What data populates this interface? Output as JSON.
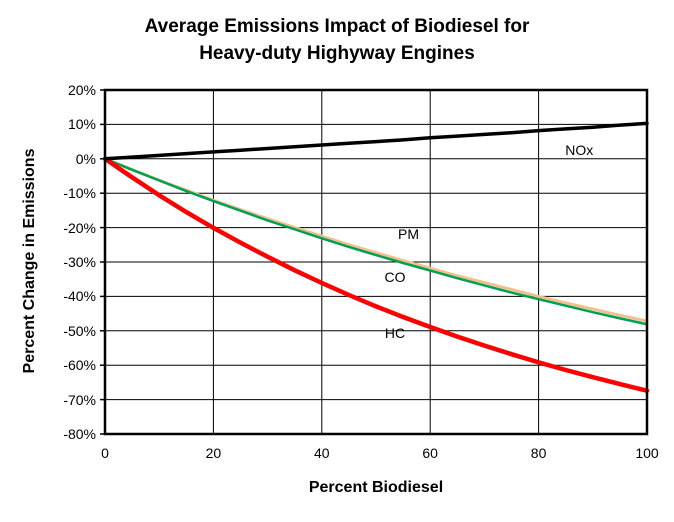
{
  "page": {
    "background": "#ffffff"
  },
  "title": {
    "line1": "Average Emissions Impact of Biodiesel for",
    "line2": "Heavy-duty Highyway Engines"
  },
  "chart_data": {
    "type": "line",
    "title": "Average Emissions Impact of Biodiesel for Heavy-duty Highyway Engines",
    "xlabel": "Percent Biodiesel",
    "ylabel": "Percent Change in Emissions",
    "xlim": [
      0,
      100
    ],
    "ylim": [
      -80,
      20
    ],
    "grid": true,
    "border_color": "#000000",
    "grid_color": "#000000",
    "x_ticks": [
      {
        "value": 0,
        "label": "0"
      },
      {
        "value": 20,
        "label": "20"
      },
      {
        "value": 40,
        "label": "40"
      },
      {
        "value": 60,
        "label": "60"
      },
      {
        "value": 80,
        "label": "80"
      },
      {
        "value": 100,
        "label": "100"
      }
    ],
    "y_ticks": [
      {
        "value": 20,
        "label": "20%"
      },
      {
        "value": 10,
        "label": "10%"
      },
      {
        "value": 0,
        "label": "0%"
      },
      {
        "value": -10,
        "label": "-10%"
      },
      {
        "value": -20,
        "label": "-20%"
      },
      {
        "value": -30,
        "label": "-30%"
      },
      {
        "value": -40,
        "label": "-40%"
      },
      {
        "value": -50,
        "label": "-50%"
      },
      {
        "value": -60,
        "label": "-60%"
      },
      {
        "value": -70,
        "label": "-70%"
      },
      {
        "value": -80,
        "label": "-80%"
      }
    ],
    "x": [
      0,
      5,
      10,
      15,
      20,
      25,
      30,
      35,
      40,
      45,
      50,
      55,
      60,
      65,
      70,
      75,
      80,
      85,
      90,
      95,
      100
    ],
    "series": [
      {
        "name": "PM",
        "color": "#F2BE8C",
        "stroke_width": 3,
        "values": [
          0,
          -3.1,
          -6.2,
          -9.1,
          -12.0,
          -14.8,
          -17.4,
          -20.0,
          -22.5,
          -25.0,
          -27.3,
          -29.6,
          -31.8,
          -34.0,
          -36.0,
          -38.0,
          -40.0,
          -41.9,
          -43.7,
          -45.5,
          -47.2
        ],
        "label": {
          "text": "PM",
          "x": 56,
          "y": -22
        }
      },
      {
        "name": "CO",
        "color": "#00A050",
        "stroke_width": 2.5,
        "values": [
          0,
          -3.2,
          -6.3,
          -9.4,
          -12.3,
          -15.1,
          -17.9,
          -20.5,
          -23.1,
          -25.6,
          -28.0,
          -30.3,
          -32.5,
          -34.7,
          -36.8,
          -38.9,
          -40.8,
          -42.7,
          -44.6,
          -46.4,
          -48.1
        ],
        "label": {
          "text": "CO",
          "x": 53.5,
          "y": -34.5
        }
      },
      {
        "name": "HC",
        "color": "#FF0000",
        "stroke_width": 4.5,
        "values": [
          0,
          -5.4,
          -10.6,
          -15.5,
          -20.1,
          -24.4,
          -28.5,
          -32.4,
          -36.1,
          -39.6,
          -42.9,
          -46.0,
          -48.9,
          -51.7,
          -54.3,
          -56.8,
          -59.2,
          -61.4,
          -63.5,
          -65.5,
          -67.4
        ],
        "label": {
          "text": "HC",
          "x": 53.5,
          "y": -50.5
        }
      },
      {
        "name": "NOx",
        "color": "#000000",
        "stroke_width": 3.5,
        "values": [
          0,
          0.5,
          1.0,
          1.5,
          2.0,
          2.5,
          3.0,
          3.5,
          4.0,
          4.5,
          5.0,
          5.5,
          6.1,
          6.6,
          7.1,
          7.6,
          8.2,
          8.7,
          9.2,
          9.8,
          10.3
        ],
        "label": {
          "text": "NOx",
          "x": 87.5,
          "y": 2.5
        }
      }
    ]
  }
}
